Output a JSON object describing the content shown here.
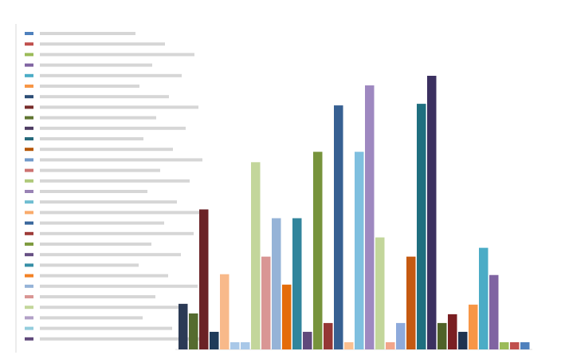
{
  "chart_data": {
    "type": "bar",
    "values": [
      57,
      45,
      175,
      22,
      94,
      9,
      9,
      234,
      116,
      164,
      81,
      164,
      22,
      247,
      33,
      305,
      9,
      247,
      330,
      140,
      9,
      33,
      116,
      307,
      342,
      33,
      44,
      22,
      56,
      127,
      93,
      9,
      9,
      9
    ],
    "colors": [
      "#2b3a55",
      "#556b2f",
      "#6b2226",
      "#1f3b5a",
      "#f8b98a",
      "#a9c8e8",
      "#a9c8e8",
      "#c3d69b",
      "#d99694",
      "#95b3d7",
      "#e46c0a",
      "#31859c",
      "#604a7b",
      "#77933c",
      "#953735",
      "#376092",
      "#fac090",
      "#7fbfdf",
      "#9e88c0",
      "#c3d69b",
      "#f2a58a",
      "#8eaadb",
      "#c55a11",
      "#1f6f7f",
      "#3b3060",
      "#4f6228",
      "#7a1f22",
      "#1f3350",
      "#f79646",
      "#4bacc6",
      "#8064a2",
      "#9bbb59",
      "#c0504d",
      "#4f81bd"
    ],
    "legend_colors": [
      "#4f81bd",
      "#c0504d",
      "#9bbb59",
      "#8064a2",
      "#4bacc6",
      "#f79646",
      "#2c4d75",
      "#772c2a",
      "#5f7530",
      "#4d3b62",
      "#276a7c",
      "#b65708",
      "#729aca",
      "#cd7371",
      "#afc97a",
      "#9983b5",
      "#6fbdd1",
      "#f9ab6b",
      "#3a679c",
      "#9e3b38",
      "#7f9c40",
      "#664f83",
      "#358ea6",
      "#f38225",
      "#95b3d7",
      "#d99694",
      "#c3d69b",
      "#b2a1c7",
      "#93cddd",
      "#604a7b"
    ]
  }
}
